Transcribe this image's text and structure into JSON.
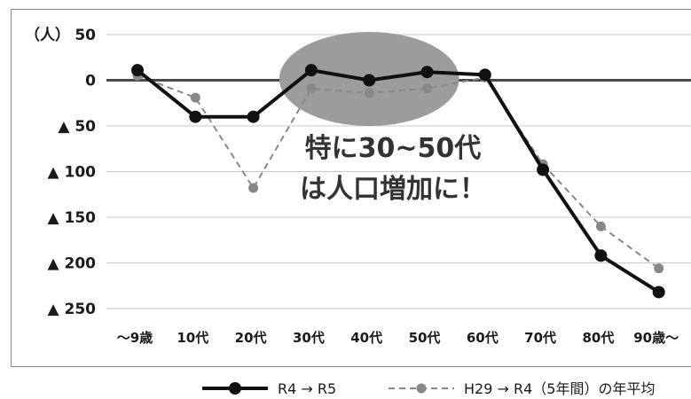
{
  "chart_data": {
    "type": "line",
    "unit_label": "（人）",
    "categories": [
      "〜9歳",
      "10代",
      "20代",
      "30代",
      "40代",
      "50代",
      "60代",
      "70代",
      "80代",
      "90歳〜"
    ],
    "y_tick_labels": [
      "50",
      "0",
      "▲ 50",
      "▲ 100",
      "▲ 150",
      "▲ 200",
      "▲ 250"
    ],
    "y_tick_values": [
      50,
      0,
      -50,
      -100,
      -150,
      -200,
      -250
    ],
    "ylim": [
      -260,
      70
    ],
    "zero_line": 0,
    "grid": true,
    "legend_position": "bottom",
    "series": [
      {
        "name": "R4 → R5",
        "style": "solid",
        "color": "#111111",
        "values": [
          11,
          -40,
          -40,
          11,
          0,
          9,
          6,
          -98,
          -192,
          -232
        ]
      },
      {
        "name": "H29 → R4（5年間）の年平均",
        "style": "dashed",
        "color": "#888888",
        "values": [
          5,
          -19,
          -118,
          -9,
          -14,
          -9,
          3,
          -92,
          -160,
          -206
        ]
      }
    ],
    "annotation": {
      "lines": [
        "特に30~50代",
        "は人口増加に！"
      ],
      "highlight_color": "#9c9c9c",
      "spans": [
        "30代",
        "50代"
      ]
    }
  }
}
